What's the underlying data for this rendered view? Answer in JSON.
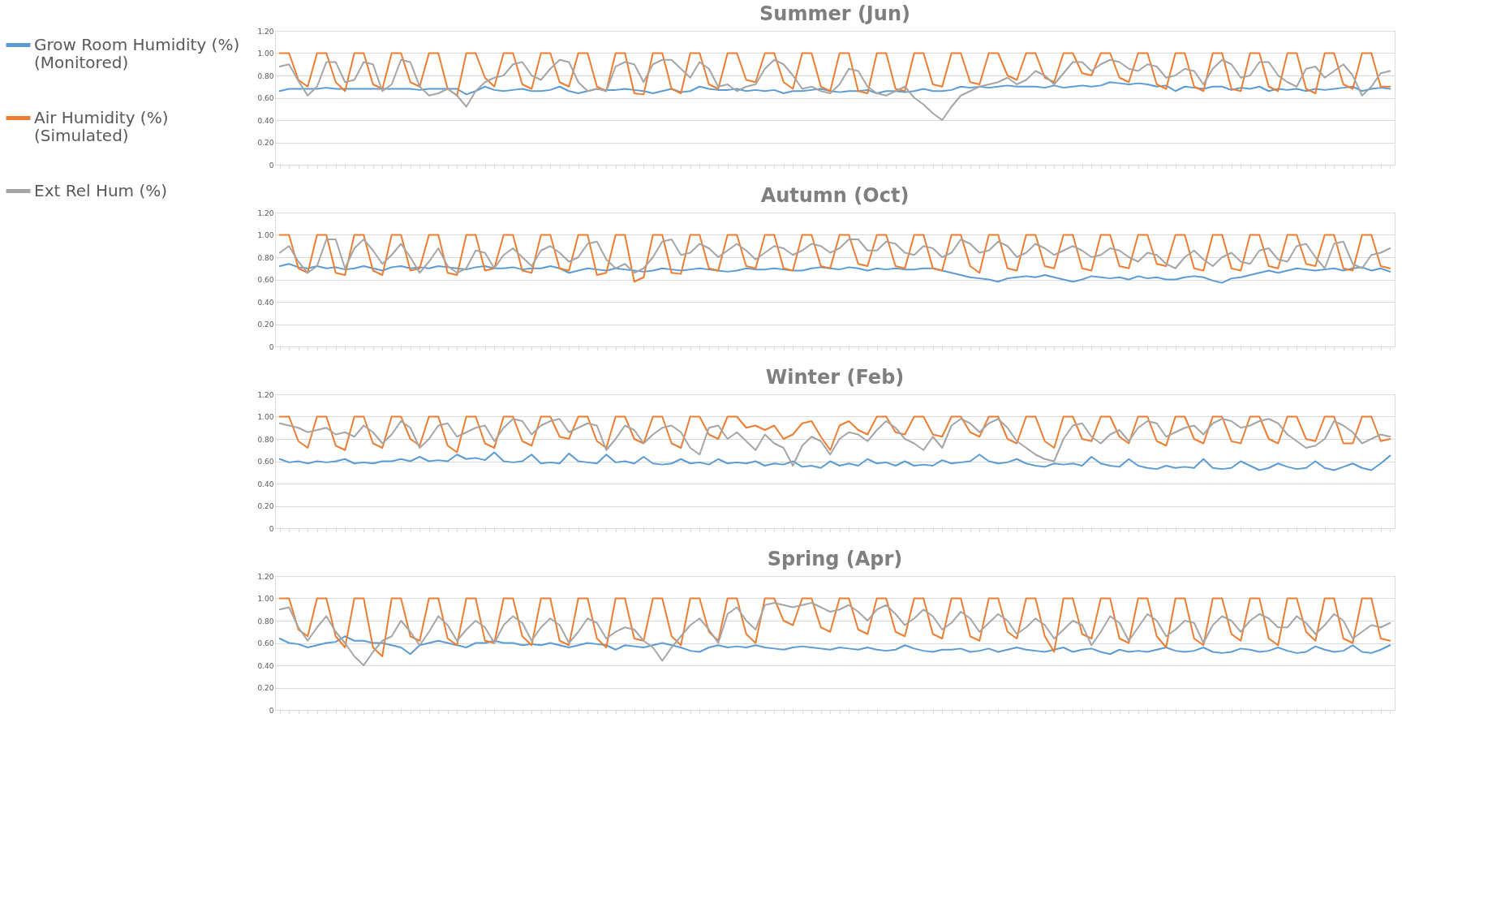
{
  "chart_data": [
    {
      "type": "line",
      "title": "Summer (Jun)",
      "legend": "left",
      "grid": "y",
      "ylim": [
        0,
        1.2
      ],
      "yticks": [
        {
          "value": 0,
          "label": "0"
        },
        {
          "value": 0.2,
          "label": "0.20"
        },
        {
          "value": 0.4,
          "label": "0.40"
        },
        {
          "value": 0.6,
          "label": "0.60"
        },
        {
          "value": 0.8,
          "label": "0.80"
        },
        {
          "value": 1.0,
          "label": "1.00"
        },
        {
          "value": 1.2,
          "label": "1.20"
        }
      ],
      "categories": [
        null,
        null,
        null,
        null,
        null,
        null,
        null,
        null,
        null,
        null,
        null,
        null,
        null,
        null,
        null,
        null,
        null,
        null,
        null,
        null,
        null,
        null,
        null,
        null,
        null,
        null,
        null,
        null,
        null,
        null,
        null,
        null,
        null,
        null,
        null,
        null,
        null,
        null,
        null,
        null,
        null,
        null,
        null,
        null,
        null,
        null,
        null,
        null,
        null,
        null,
        null,
        null,
        null,
        null,
        null,
        null,
        null,
        null,
        null,
        null,
        null,
        null,
        null,
        null,
        null,
        null,
        null,
        null,
        null,
        null,
        null,
        null,
        null,
        null,
        null,
        null,
        null,
        null,
        null,
        null,
        null,
        null,
        null,
        null,
        null,
        null,
        null,
        null,
        null,
        null,
        null,
        null,
        null,
        null,
        null,
        null,
        null,
        null,
        null,
        null,
        null,
        null,
        null,
        null,
        null,
        null,
        null,
        null,
        null,
        null,
        null,
        null,
        null,
        null,
        null,
        null,
        null,
        null,
        null,
        null
      ],
      "series": [
        {
          "name": "Grow Room Humidity (%)\n(Monitored)",
          "color": "#5b9bd5",
          "values": [
            0.66,
            0.68,
            0.68,
            0.68,
            0.68,
            0.69,
            0.68,
            0.68,
            0.68,
            0.68,
            0.68,
            0.68,
            0.68,
            0.68,
            0.68,
            0.67,
            0.68,
            0.68,
            0.68,
            0.68,
            0.63,
            0.66,
            0.7,
            0.67,
            0.66,
            0.67,
            0.68,
            0.66,
            0.66,
            0.67,
            0.7,
            0.66,
            0.64,
            0.66,
            0.68,
            0.67,
            0.67,
            0.68,
            0.67,
            0.66,
            0.64,
            0.66,
            0.68,
            0.65,
            0.66,
            0.7,
            0.68,
            0.67,
            0.67,
            0.68,
            0.66,
            0.67,
            0.66,
            0.67,
            0.64,
            0.66,
            0.66,
            0.67,
            0.68,
            0.66,
            0.65,
            0.66,
            0.66,
            0.67,
            0.64,
            0.66,
            0.66,
            0.65,
            0.66,
            0.68,
            0.66,
            0.66,
            0.67,
            0.7,
            0.69,
            0.7,
            0.69,
            0.7,
            0.71,
            0.7,
            0.7,
            0.7,
            0.69,
            0.71,
            0.69,
            0.7,
            0.71,
            0.7,
            0.71,
            0.74,
            0.73,
            0.72,
            0.73,
            0.72,
            0.7,
            0.71,
            0.66,
            0.7,
            0.69,
            0.68,
            0.7,
            0.7,
            0.67,
            0.69,
            0.68,
            0.7,
            0.66,
            0.68,
            0.67,
            0.68,
            0.66,
            0.68,
            0.67,
            0.68,
            0.69,
            0.7,
            0.66,
            0.68,
            0.69,
            0.68
          ]
        },
        {
          "name": "Air Humidity (%)\n(Simulated)",
          "color": "#ed7d31",
          "values": [
            1.0,
            1.0,
            0.76,
            0.7,
            1.0,
            1.0,
            0.74,
            0.66,
            1.0,
            1.0,
            0.72,
            0.68,
            1.0,
            1.0,
            0.74,
            0.7,
            1.0,
            1.0,
            0.68,
            0.62,
            1.0,
            1.0,
            0.78,
            0.7,
            1.0,
            1.0,
            0.72,
            0.68,
            1.0,
            1.0,
            0.74,
            0.7,
            1.0,
            1.0,
            0.7,
            0.66,
            1.0,
            1.0,
            0.64,
            0.63,
            1.0,
            1.0,
            0.68,
            0.64,
            1.0,
            1.0,
            0.72,
            0.68,
            1.0,
            1.0,
            0.76,
            0.74,
            1.0,
            1.0,
            0.74,
            0.68,
            1.0,
            1.0,
            0.7,
            0.66,
            1.0,
            1.0,
            0.66,
            0.64,
            1.0,
            1.0,
            0.68,
            0.66,
            1.0,
            1.0,
            0.72,
            0.7,
            1.0,
            1.0,
            0.74,
            0.72,
            1.0,
            1.0,
            0.8,
            0.76,
            1.0,
            1.0,
            0.78,
            0.74,
            1.0,
            1.0,
            0.82,
            0.8,
            1.0,
            1.0,
            0.78,
            0.74,
            1.0,
            1.0,
            0.72,
            0.68,
            1.0,
            1.0,
            0.7,
            0.66,
            1.0,
            1.0,
            0.68,
            0.66,
            1.0,
            1.0,
            0.7,
            0.66,
            1.0,
            1.0,
            0.68,
            0.64,
            1.0,
            1.0,
            0.72,
            0.68,
            1.0,
            1.0,
            0.7,
            0.7
          ]
        },
        {
          "name": "Ext Rel Hum (%)",
          "color": "#a5a5a5",
          "values": [
            0.88,
            0.9,
            0.75,
            0.62,
            0.7,
            0.92,
            0.92,
            0.74,
            0.76,
            0.92,
            0.9,
            0.66,
            0.72,
            0.94,
            0.92,
            0.7,
            0.62,
            0.64,
            0.68,
            0.62,
            0.52,
            0.66,
            0.74,
            0.78,
            0.8,
            0.9,
            0.92,
            0.8,
            0.76,
            0.86,
            0.94,
            0.92,
            0.74,
            0.66,
            0.68,
            0.66,
            0.88,
            0.92,
            0.9,
            0.74,
            0.9,
            0.94,
            0.94,
            0.86,
            0.78,
            0.92,
            0.86,
            0.7,
            0.72,
            0.66,
            0.7,
            0.72,
            0.86,
            0.94,
            0.9,
            0.8,
            0.68,
            0.7,
            0.66,
            0.64,
            0.72,
            0.86,
            0.84,
            0.7,
            0.64,
            0.62,
            0.66,
            0.7,
            0.6,
            0.54,
            0.46,
            0.4,
            0.52,
            0.62,
            0.66,
            0.7,
            0.72,
            0.74,
            0.78,
            0.72,
            0.76,
            0.84,
            0.8,
            0.72,
            0.82,
            0.92,
            0.92,
            0.84,
            0.9,
            0.94,
            0.92,
            0.86,
            0.84,
            0.9,
            0.88,
            0.78,
            0.8,
            0.86,
            0.84,
            0.72,
            0.86,
            0.94,
            0.9,
            0.78,
            0.8,
            0.92,
            0.92,
            0.8,
            0.74,
            0.7,
            0.86,
            0.88,
            0.78,
            0.84,
            0.9,
            0.8,
            0.62,
            0.7,
            0.82,
            0.84
          ]
        }
      ]
    },
    {
      "type": "line",
      "title": "Autumn (Oct)",
      "legend": false,
      "grid": "y",
      "ylim": [
        0,
        1.2
      ],
      "yticks": [
        {
          "value": 0,
          "label": "0"
        },
        {
          "value": 0.2,
          "label": "0.20"
        },
        {
          "value": 0.4,
          "label": "0.40"
        },
        {
          "value": 0.6,
          "label": "0.60"
        },
        {
          "value": 0.8,
          "label": "0.80"
        },
        {
          "value": 1.0,
          "label": "1.00"
        },
        {
          "value": 1.2,
          "label": "1.20"
        }
      ],
      "categories": [
        null,
        null,
        null,
        null,
        null,
        null,
        null,
        null,
        null,
        null,
        null,
        null,
        null,
        null,
        null,
        null,
        null,
        null,
        null,
        null,
        null,
        null,
        null,
        null,
        null,
        null,
        null,
        null,
        null,
        null,
        null,
        null,
        null,
        null,
        null,
        null,
        null,
        null,
        null,
        null,
        null,
        null,
        null,
        null,
        null,
        null,
        null,
        null,
        null,
        null,
        null,
        null,
        null,
        null,
        null,
        null,
        null,
        null,
        null,
        null,
        null,
        null,
        null,
        null,
        null,
        null,
        null,
        null,
        null,
        null,
        null,
        null,
        null,
        null,
        null,
        null,
        null,
        null,
        null,
        null,
        null,
        null,
        null,
        null,
        null,
        null,
        null,
        null,
        null,
        null,
        null,
        null,
        null,
        null,
        null,
        null,
        null,
        null,
        null,
        null,
        null,
        null,
        null,
        null,
        null,
        null,
        null,
        null,
        null,
        null,
        null,
        null,
        null,
        null,
        null,
        null,
        null,
        null,
        null,
        null
      ],
      "series": [
        {
          "name": "Grow Room Humidity (%)\n(Monitored)",
          "color": "#5b9bd5",
          "values": [
            0.72,
            0.74,
            0.71,
            0.7,
            0.72,
            0.7,
            0.71,
            0.69,
            0.7,
            0.72,
            0.7,
            0.68,
            0.71,
            0.72,
            0.7,
            0.71,
            0.7,
            0.72,
            0.71,
            0.7,
            0.69,
            0.71,
            0.72,
            0.7,
            0.7,
            0.71,
            0.69,
            0.7,
            0.7,
            0.72,
            0.7,
            0.66,
            0.68,
            0.7,
            0.69,
            0.68,
            0.7,
            0.69,
            0.68,
            0.67,
            0.68,
            0.7,
            0.69,
            0.68,
            0.69,
            0.7,
            0.69,
            0.68,
            0.67,
            0.68,
            0.7,
            0.69,
            0.69,
            0.7,
            0.69,
            0.68,
            0.68,
            0.7,
            0.71,
            0.7,
            0.69,
            0.71,
            0.7,
            0.68,
            0.7,
            0.69,
            0.7,
            0.69,
            0.69,
            0.7,
            0.7,
            0.68,
            0.66,
            0.64,
            0.62,
            0.61,
            0.6,
            0.58,
            0.61,
            0.62,
            0.63,
            0.62,
            0.64,
            0.62,
            0.6,
            0.58,
            0.6,
            0.63,
            0.62,
            0.61,
            0.62,
            0.6,
            0.63,
            0.61,
            0.62,
            0.6,
            0.6,
            0.62,
            0.63,
            0.62,
            0.59,
            0.57,
            0.61,
            0.62,
            0.64,
            0.66,
            0.68,
            0.66,
            0.68,
            0.7,
            0.69,
            0.68,
            0.69,
            0.7,
            0.68,
            0.7,
            0.71,
            0.68,
            0.7,
            0.67
          ]
        },
        {
          "name": "Air Humidity (%)\n(Simulated)",
          "color": "#ed7d31",
          "values": [
            1.0,
            1.0,
            0.7,
            0.66,
            1.0,
            1.0,
            0.66,
            0.64,
            1.0,
            1.0,
            0.68,
            0.64,
            1.0,
            1.0,
            0.68,
            0.7,
            1.0,
            1.0,
            0.66,
            0.64,
            1.0,
            1.0,
            0.68,
            0.7,
            1.0,
            1.0,
            0.68,
            0.66,
            1.0,
            1.0,
            0.7,
            0.68,
            1.0,
            1.0,
            0.64,
            0.66,
            1.0,
            1.0,
            0.58,
            0.62,
            1.0,
            1.0,
            0.66,
            0.65,
            1.0,
            1.0,
            0.7,
            0.68,
            1.0,
            1.0,
            0.72,
            0.7,
            1.0,
            1.0,
            0.7,
            0.68,
            1.0,
            1.0,
            0.72,
            0.7,
            1.0,
            1.0,
            0.74,
            0.72,
            1.0,
            1.0,
            0.72,
            0.7,
            1.0,
            1.0,
            0.7,
            0.68,
            1.0,
            1.0,
            0.72,
            0.66,
            1.0,
            1.0,
            0.7,
            0.68,
            1.0,
            1.0,
            0.72,
            0.7,
            1.0,
            1.0,
            0.7,
            0.68,
            1.0,
            1.0,
            0.72,
            0.7,
            1.0,
            1.0,
            0.74,
            0.72,
            1.0,
            1.0,
            0.7,
            0.68,
            1.0,
            1.0,
            0.7,
            0.68,
            1.0,
            1.0,
            0.72,
            0.7,
            1.0,
            1.0,
            0.74,
            0.72,
            1.0,
            1.0,
            0.7,
            0.68,
            1.0,
            1.0,
            0.72,
            0.7
          ]
        },
        {
          "name": "Ext Rel Hum (%)",
          "color": "#a5a5a5",
          "values": [
            0.84,
            0.9,
            0.76,
            0.66,
            0.72,
            0.96,
            0.96,
            0.7,
            0.88,
            0.96,
            0.86,
            0.74,
            0.82,
            0.92,
            0.8,
            0.66,
            0.76,
            0.88,
            0.72,
            0.66,
            0.7,
            0.86,
            0.84,
            0.7,
            0.82,
            0.88,
            0.8,
            0.72,
            0.86,
            0.9,
            0.84,
            0.76,
            0.8,
            0.92,
            0.94,
            0.78,
            0.7,
            0.74,
            0.66,
            0.7,
            0.8,
            0.94,
            0.96,
            0.82,
            0.84,
            0.92,
            0.88,
            0.8,
            0.86,
            0.92,
            0.86,
            0.78,
            0.84,
            0.9,
            0.88,
            0.82,
            0.86,
            0.92,
            0.9,
            0.84,
            0.88,
            0.96,
            0.96,
            0.86,
            0.86,
            0.94,
            0.92,
            0.84,
            0.82,
            0.9,
            0.88,
            0.8,
            0.84,
            0.96,
            0.92,
            0.84,
            0.86,
            0.94,
            0.9,
            0.8,
            0.84,
            0.92,
            0.88,
            0.82,
            0.86,
            0.9,
            0.86,
            0.8,
            0.82,
            0.88,
            0.86,
            0.8,
            0.76,
            0.84,
            0.82,
            0.74,
            0.7,
            0.8,
            0.86,
            0.78,
            0.72,
            0.8,
            0.84,
            0.76,
            0.74,
            0.86,
            0.88,
            0.78,
            0.76,
            0.9,
            0.92,
            0.8,
            0.7,
            0.92,
            0.94,
            0.74,
            0.7,
            0.82,
            0.84,
            0.88
          ]
        }
      ]
    },
    {
      "type": "line",
      "title": "Winter (Feb)",
      "legend": false,
      "grid": "y",
      "ylim": [
        0,
        1.2
      ],
      "yticks": [
        {
          "value": 0,
          "label": "0"
        },
        {
          "value": 0.2,
          "label": "0.20"
        },
        {
          "value": 0.4,
          "label": "0.40"
        },
        {
          "value": 0.6,
          "label": "0.60"
        },
        {
          "value": 0.8,
          "label": "0.80"
        },
        {
          "value": 1.0,
          "label": "1.00"
        },
        {
          "value": 1.2,
          "label": "1.20"
        }
      ],
      "categories": [
        null,
        null,
        null,
        null,
        null,
        null,
        null,
        null,
        null,
        null,
        null,
        null,
        null,
        null,
        null,
        null,
        null,
        null,
        null,
        null,
        null,
        null,
        null,
        null,
        null,
        null,
        null,
        null,
        null,
        null,
        null,
        null,
        null,
        null,
        null,
        null,
        null,
        null,
        null,
        null,
        null,
        null,
        null,
        null,
        null,
        null,
        null,
        null,
        null,
        null,
        null,
        null,
        null,
        null,
        null,
        null,
        null,
        null,
        null,
        null,
        null,
        null,
        null,
        null,
        null,
        null,
        null,
        null,
        null,
        null,
        null,
        null,
        null,
        null,
        null,
        null,
        null,
        null,
        null,
        null,
        null,
        null,
        null,
        null,
        null,
        null,
        null,
        null,
        null,
        null,
        null,
        null,
        null,
        null,
        null,
        null,
        null,
        null,
        null,
        null,
        null,
        null,
        null,
        null,
        null,
        null,
        null,
        null,
        null,
        null,
        null,
        null,
        null,
        null,
        null,
        null,
        null,
        null,
        null,
        null
      ],
      "series": [
        {
          "name": "Grow Room Humidity (%)\n(Monitored)",
          "color": "#5b9bd5",
          "values": [
            0.62,
            0.59,
            0.6,
            0.58,
            0.6,
            0.59,
            0.6,
            0.62,
            0.58,
            0.59,
            0.58,
            0.6,
            0.6,
            0.62,
            0.6,
            0.64,
            0.6,
            0.61,
            0.6,
            0.66,
            0.62,
            0.63,
            0.61,
            0.68,
            0.6,
            0.59,
            0.6,
            0.66,
            0.58,
            0.59,
            0.58,
            0.67,
            0.6,
            0.59,
            0.58,
            0.66,
            0.59,
            0.6,
            0.58,
            0.64,
            0.58,
            0.57,
            0.58,
            0.62,
            0.58,
            0.59,
            0.57,
            0.62,
            0.58,
            0.59,
            0.58,
            0.6,
            0.56,
            0.58,
            0.57,
            0.6,
            0.55,
            0.56,
            0.54,
            0.6,
            0.56,
            0.58,
            0.56,
            0.62,
            0.58,
            0.59,
            0.56,
            0.6,
            0.56,
            0.57,
            0.56,
            0.61,
            0.58,
            0.59,
            0.6,
            0.66,
            0.6,
            0.58,
            0.59,
            0.62,
            0.58,
            0.56,
            0.55,
            0.58,
            0.57,
            0.58,
            0.56,
            0.64,
            0.58,
            0.56,
            0.55,
            0.62,
            0.56,
            0.54,
            0.53,
            0.56,
            0.54,
            0.55,
            0.54,
            0.62,
            0.54,
            0.53,
            0.54,
            0.6,
            0.56,
            0.52,
            0.54,
            0.58,
            0.55,
            0.53,
            0.54,
            0.6,
            0.54,
            0.52,
            0.55,
            0.58,
            0.54,
            0.52,
            0.58,
            0.65
          ]
        },
        {
          "name": "Air Humidity (%)\n(Simulated)",
          "color": "#ed7d31",
          "values": [
            1.0,
            1.0,
            0.78,
            0.72,
            1.0,
            1.0,
            0.74,
            0.7,
            1.0,
            1.0,
            0.76,
            0.72,
            1.0,
            1.0,
            0.8,
            0.74,
            1.0,
            1.0,
            0.74,
            0.68,
            1.0,
            1.0,
            0.76,
            0.72,
            1.0,
            1.0,
            0.78,
            0.74,
            1.0,
            1.0,
            0.82,
            0.8,
            1.0,
            1.0,
            0.78,
            0.72,
            1.0,
            1.0,
            0.8,
            0.76,
            1.0,
            1.0,
            0.76,
            0.72,
            1.0,
            1.0,
            0.84,
            0.8,
            1.0,
            1.0,
            0.9,
            0.92,
            0.88,
            0.92,
            0.8,
            0.84,
            0.94,
            0.96,
            0.82,
            0.7,
            0.92,
            0.96,
            0.88,
            0.84,
            1.0,
            1.0,
            0.86,
            0.84,
            1.0,
            1.0,
            0.84,
            0.82,
            1.0,
            1.0,
            0.86,
            0.82,
            1.0,
            1.0,
            0.8,
            0.76,
            1.0,
            1.0,
            0.78,
            0.72,
            1.0,
            1.0,
            0.8,
            0.78,
            1.0,
            1.0,
            0.82,
            0.76,
            1.0,
            1.0,
            0.78,
            0.74,
            1.0,
            1.0,
            0.8,
            0.76,
            1.0,
            1.0,
            0.78,
            0.76,
            1.0,
            1.0,
            0.8,
            0.76,
            1.0,
            1.0,
            0.8,
            0.78,
            1.0,
            1.0,
            0.76,
            0.76,
            1.0,
            1.0,
            0.78,
            0.8
          ]
        },
        {
          "name": "Ext Rel Hum (%)",
          "color": "#a5a5a5",
          "values": [
            0.94,
            0.92,
            0.9,
            0.86,
            0.88,
            0.9,
            0.84,
            0.86,
            0.82,
            0.92,
            0.86,
            0.76,
            0.84,
            0.96,
            0.9,
            0.72,
            0.8,
            0.92,
            0.94,
            0.82,
            0.86,
            0.9,
            0.92,
            0.78,
            0.9,
            0.98,
            0.96,
            0.84,
            0.92,
            0.96,
            0.98,
            0.86,
            0.9,
            0.94,
            0.92,
            0.7,
            0.8,
            0.92,
            0.88,
            0.76,
            0.84,
            0.9,
            0.92,
            0.86,
            0.72,
            0.66,
            0.9,
            0.92,
            0.8,
            0.86,
            0.78,
            0.7,
            0.84,
            0.76,
            0.72,
            0.56,
            0.74,
            0.82,
            0.78,
            0.66,
            0.8,
            0.86,
            0.84,
            0.78,
            0.88,
            0.96,
            0.9,
            0.8,
            0.76,
            0.7,
            0.82,
            0.72,
            0.92,
            0.98,
            0.94,
            0.86,
            0.94,
            0.98,
            0.9,
            0.78,
            0.72,
            0.66,
            0.62,
            0.6,
            0.8,
            0.92,
            0.94,
            0.82,
            0.76,
            0.84,
            0.88,
            0.78,
            0.9,
            0.96,
            0.94,
            0.82,
            0.86,
            0.9,
            0.92,
            0.84,
            0.94,
            0.98,
            0.96,
            0.9,
            0.92,
            0.96,
            0.98,
            0.94,
            0.84,
            0.78,
            0.72,
            0.74,
            0.8,
            0.96,
            0.92,
            0.86,
            0.76,
            0.8,
            0.84,
            0.82
          ]
        }
      ]
    },
    {
      "type": "line",
      "title": "Spring (Apr)",
      "legend": false,
      "grid": "y",
      "ylim": [
        0,
        1.2
      ],
      "yticks": [
        {
          "value": 0,
          "label": "0"
        },
        {
          "value": 0.2,
          "label": "0.20"
        },
        {
          "value": 0.4,
          "label": "0.40"
        },
        {
          "value": 0.6,
          "label": "0.60"
        },
        {
          "value": 0.8,
          "label": "0.80"
        },
        {
          "value": 1.0,
          "label": "1.00"
        },
        {
          "value": 1.2,
          "label": "1.20"
        }
      ],
      "categories": [
        null,
        null,
        null,
        null,
        null,
        null,
        null,
        null,
        null,
        null,
        null,
        null,
        null,
        null,
        null,
        null,
        null,
        null,
        null,
        null,
        null,
        null,
        null,
        null,
        null,
        null,
        null,
        null,
        null,
        null,
        null,
        null,
        null,
        null,
        null,
        null,
        null,
        null,
        null,
        null,
        null,
        null,
        null,
        null,
        null,
        null,
        null,
        null,
        null,
        null,
        null,
        null,
        null,
        null,
        null,
        null,
        null,
        null,
        null,
        null,
        null,
        null,
        null,
        null,
        null,
        null,
        null,
        null,
        null,
        null,
        null,
        null,
        null,
        null,
        null,
        null,
        null,
        null,
        null,
        null,
        null,
        null,
        null,
        null,
        null,
        null,
        null,
        null,
        null,
        null,
        null,
        null,
        null,
        null,
        null,
        null,
        null,
        null,
        null,
        null,
        null,
        null,
        null,
        null,
        null,
        null,
        null,
        null,
        null,
        null,
        null,
        null,
        null,
        null,
        null,
        null,
        null,
        null,
        null,
        null
      ],
      "series": [
        {
          "name": "Grow Room Humidity (%)\n(Monitored)",
          "color": "#5b9bd5",
          "values": [
            0.64,
            0.6,
            0.59,
            0.56,
            0.58,
            0.6,
            0.61,
            0.66,
            0.62,
            0.62,
            0.6,
            0.6,
            0.58,
            0.56,
            0.5,
            0.58,
            0.6,
            0.62,
            0.6,
            0.58,
            0.56,
            0.6,
            0.6,
            0.62,
            0.6,
            0.6,
            0.58,
            0.59,
            0.58,
            0.6,
            0.58,
            0.56,
            0.58,
            0.6,
            0.59,
            0.58,
            0.54,
            0.58,
            0.57,
            0.56,
            0.58,
            0.6,
            0.58,
            0.56,
            0.53,
            0.52,
            0.56,
            0.58,
            0.56,
            0.57,
            0.56,
            0.58,
            0.56,
            0.55,
            0.54,
            0.56,
            0.57,
            0.56,
            0.55,
            0.54,
            0.56,
            0.55,
            0.54,
            0.56,
            0.54,
            0.53,
            0.54,
            0.58,
            0.55,
            0.53,
            0.52,
            0.54,
            0.54,
            0.55,
            0.52,
            0.53,
            0.55,
            0.52,
            0.54,
            0.56,
            0.54,
            0.53,
            0.52,
            0.54,
            0.56,
            0.52,
            0.54,
            0.55,
            0.52,
            0.5,
            0.54,
            0.52,
            0.53,
            0.52,
            0.54,
            0.56,
            0.53,
            0.52,
            0.53,
            0.56,
            0.52,
            0.51,
            0.52,
            0.55,
            0.54,
            0.52,
            0.53,
            0.56,
            0.53,
            0.51,
            0.52,
            0.57,
            0.54,
            0.52,
            0.53,
            0.58,
            0.52,
            0.51,
            0.54,
            0.58
          ]
        },
        {
          "name": "Air Humidity (%)\n(Simulated)",
          "color": "#ed7d31",
          "values": [
            1.0,
            1.0,
            0.72,
            0.66,
            1.0,
            1.0,
            0.66,
            0.56,
            1.0,
            1.0,
            0.56,
            0.48,
            1.0,
            1.0,
            0.66,
            0.62,
            1.0,
            1.0,
            0.64,
            0.58,
            1.0,
            1.0,
            0.62,
            0.6,
            1.0,
            1.0,
            0.66,
            0.58,
            1.0,
            1.0,
            0.62,
            0.58,
            1.0,
            1.0,
            0.64,
            0.56,
            1.0,
            1.0,
            0.64,
            0.62,
            1.0,
            1.0,
            0.66,
            0.58,
            1.0,
            1.0,
            0.7,
            0.62,
            1.0,
            1.0,
            0.68,
            0.6,
            1.0,
            1.0,
            0.8,
            0.76,
            1.0,
            1.0,
            0.74,
            0.7,
            1.0,
            1.0,
            0.72,
            0.68,
            1.0,
            1.0,
            0.7,
            0.66,
            1.0,
            1.0,
            0.68,
            0.64,
            1.0,
            1.0,
            0.66,
            0.62,
            1.0,
            1.0,
            0.7,
            0.64,
            1.0,
            1.0,
            0.66,
            0.52,
            1.0,
            1.0,
            0.68,
            0.64,
            1.0,
            1.0,
            0.64,
            0.6,
            1.0,
            1.0,
            0.66,
            0.56,
            1.0,
            1.0,
            0.64,
            0.58,
            1.0,
            1.0,
            0.68,
            0.62,
            1.0,
            1.0,
            0.64,
            0.58,
            1.0,
            1.0,
            0.7,
            0.62,
            1.0,
            1.0,
            0.64,
            0.6,
            1.0,
            1.0,
            0.64,
            0.62
          ]
        },
        {
          "name": "Ext Rel Hum (%)",
          "color": "#a5a5a5",
          "values": [
            0.9,
            0.92,
            0.74,
            0.62,
            0.74,
            0.84,
            0.7,
            0.6,
            0.48,
            0.4,
            0.52,
            0.62,
            0.66,
            0.8,
            0.7,
            0.58,
            0.7,
            0.84,
            0.76,
            0.62,
            0.72,
            0.8,
            0.74,
            0.6,
            0.76,
            0.84,
            0.78,
            0.62,
            0.74,
            0.82,
            0.76,
            0.6,
            0.7,
            0.82,
            0.78,
            0.64,
            0.7,
            0.74,
            0.72,
            0.62,
            0.56,
            0.44,
            0.56,
            0.66,
            0.76,
            0.82,
            0.72,
            0.6,
            0.86,
            0.92,
            0.8,
            0.72,
            0.94,
            0.96,
            0.94,
            0.92,
            0.94,
            0.96,
            0.92,
            0.88,
            0.9,
            0.94,
            0.88,
            0.8,
            0.9,
            0.94,
            0.86,
            0.76,
            0.82,
            0.9,
            0.84,
            0.72,
            0.78,
            0.88,
            0.82,
            0.7,
            0.78,
            0.86,
            0.8,
            0.68,
            0.74,
            0.82,
            0.76,
            0.64,
            0.72,
            0.8,
            0.76,
            0.58,
            0.7,
            0.84,
            0.78,
            0.62,
            0.74,
            0.86,
            0.8,
            0.66,
            0.72,
            0.8,
            0.78,
            0.6,
            0.76,
            0.84,
            0.8,
            0.7,
            0.8,
            0.86,
            0.82,
            0.74,
            0.74,
            0.84,
            0.78,
            0.68,
            0.76,
            0.86,
            0.8,
            0.64,
            0.7,
            0.76,
            0.74,
            0.78
          ]
        }
      ]
    }
  ]
}
